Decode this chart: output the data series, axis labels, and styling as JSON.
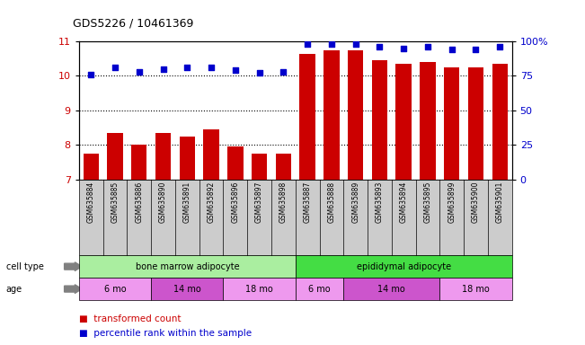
{
  "title": "GDS5226 / 10461369",
  "samples": [
    "GSM635884",
    "GSM635885",
    "GSM635886",
    "GSM635890",
    "GSM635891",
    "GSM635892",
    "GSM635896",
    "GSM635897",
    "GSM635898",
    "GSM635887",
    "GSM635888",
    "GSM635889",
    "GSM635893",
    "GSM635894",
    "GSM635895",
    "GSM635899",
    "GSM635900",
    "GSM635901"
  ],
  "bar_values": [
    7.75,
    8.35,
    8.0,
    8.35,
    8.25,
    8.45,
    7.95,
    7.75,
    7.75,
    10.65,
    10.75,
    10.75,
    10.45,
    10.35,
    10.4,
    10.25,
    10.25,
    10.35
  ],
  "dot_values": [
    76,
    81,
    78,
    80,
    81,
    81,
    79,
    77,
    78,
    98,
    98,
    98,
    96,
    95,
    96,
    94,
    94,
    96
  ],
  "ylim_left": [
    7,
    11
  ],
  "ylim_right": [
    0,
    100
  ],
  "yticks_left": [
    7,
    8,
    9,
    10,
    11
  ],
  "yticks_right": [
    0,
    25,
    50,
    75,
    100
  ],
  "ytick_labels_right": [
    "0",
    "25",
    "50",
    "75",
    "100%"
  ],
  "bar_color": "#CC0000",
  "dot_color": "#0000CC",
  "grid_color": "#000000",
  "cell_type_groups": [
    {
      "label": "bone marrow adipocyte",
      "start": 0,
      "end": 9,
      "color": "#AAEEA0"
    },
    {
      "label": "epididymal adipocyte",
      "start": 9,
      "end": 18,
      "color": "#44DD44"
    }
  ],
  "age_groups": [
    {
      "label": "6 mo",
      "start": 0,
      "end": 3,
      "color": "#EE99EE"
    },
    {
      "label": "14 mo",
      "start": 3,
      "end": 6,
      "color": "#CC55CC"
    },
    {
      "label": "18 mo",
      "start": 6,
      "end": 9,
      "color": "#EE99EE"
    },
    {
      "label": "6 mo",
      "start": 9,
      "end": 11,
      "color": "#EE99EE"
    },
    {
      "label": "14 mo",
      "start": 11,
      "end": 15,
      "color": "#CC55CC"
    },
    {
      "label": "18 mo",
      "start": 15,
      "end": 18,
      "color": "#EE99EE"
    }
  ],
  "cell_type_label": "cell type",
  "age_label": "age",
  "legend_bar": "transformed count",
  "legend_dot": "percentile rank within the sample",
  "background_color": "#FFFFFF",
  "plot_bg_color": "#FFFFFF",
  "label_bg_color": "#CCCCCC"
}
